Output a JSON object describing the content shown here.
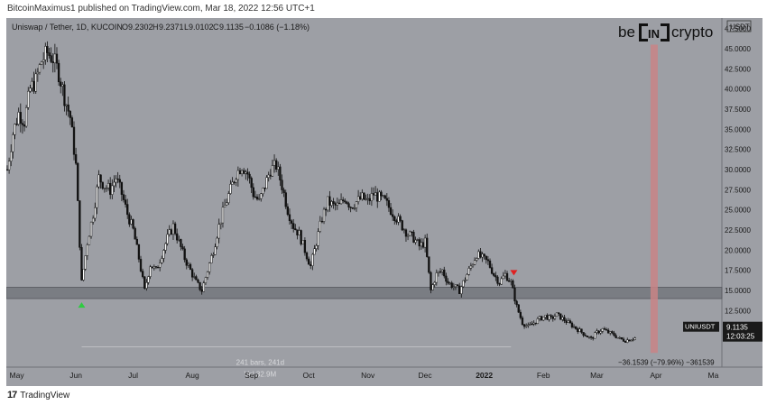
{
  "header": {
    "publish_line": "BitcoinMaximus1 published on TradingView.com, Mar 18, 2022 12:56 UTC+1"
  },
  "footer": {
    "brand": "TradingView"
  },
  "chart_data": {
    "type": "candlestick",
    "title": "Uniswap / Tether, 1D, KUCOIN",
    "ohlc": {
      "O": "9.2302",
      "H": "9.2371",
      "L": "9.0102",
      "C": "9.1135",
      "change": "−0.1086 (−1.18%)"
    },
    "currency_label": "USDT",
    "logo_text": {
      "left": "be",
      "middle": "IN",
      "right": "crypto"
    },
    "y_ticks": [
      "47.5000",
      "45.0000",
      "42.5000",
      "40.0000",
      "37.5000",
      "35.0000",
      "32.5000",
      "30.0000",
      "27.5000",
      "25.0000",
      "22.5000",
      "20.0000",
      "17.5000",
      "15.0000",
      "12.5000",
      "10.0000"
    ],
    "y_tick_values": [
      47.5,
      45,
      42.5,
      40,
      37.5,
      35,
      32.5,
      30,
      27.5,
      25,
      22.5,
      20,
      17.5,
      15,
      12.5,
      10
    ],
    "ylim": [
      5.5,
      48.8
    ],
    "x_ticks": [
      "May",
      "Jun",
      "Jul",
      "Aug",
      "Sep",
      "Oct",
      "Nov",
      "Dec",
      "2022",
      "Feb",
      "Mar",
      "Apr",
      "Ma"
    ],
    "x_tick_days": [
      5,
      36,
      66,
      97,
      128,
      158,
      189,
      219,
      250,
      281,
      309,
      340,
      370
    ],
    "xlim": [
      0,
      375
    ],
    "support_zone": [
      14.0,
      15.4
    ],
    "current_price": {
      "symbol": "UNIUSDT",
      "price": "9.1135",
      "countdown": "12:03:25",
      "value": 9.1135
    },
    "measure": {
      "bars_label": "241 bars, 241d",
      "vol_label": "Vol 32.9M",
      "change_label": "−36.1539 (−79.96%) −361539"
    },
    "path_points": [
      [
        0,
        30
      ],
      [
        3,
        34.5
      ],
      [
        6,
        37
      ],
      [
        9,
        36
      ],
      [
        12,
        40
      ],
      [
        15,
        41
      ],
      [
        18,
        43.5
      ],
      [
        21,
        44.5
      ],
      [
        24,
        43.8
      ],
      [
        27,
        42
      ],
      [
        30,
        39
      ],
      [
        33,
        36.5
      ],
      [
        36,
        30.5
      ],
      [
        39,
        16
      ],
      [
        42,
        21
      ],
      [
        45,
        24.5
      ],
      [
        48,
        29
      ],
      [
        51,
        28
      ],
      [
        54,
        27.5
      ],
      [
        57,
        29
      ],
      [
        60,
        27
      ],
      [
        63,
        24.5
      ],
      [
        66,
        22.5
      ],
      [
        69,
        19
      ],
      [
        72,
        15
      ],
      [
        75,
        18.2
      ],
      [
        78,
        17.5
      ],
      [
        81,
        19.5
      ],
      [
        84,
        21.5
      ],
      [
        87,
        23
      ],
      [
        90,
        21
      ],
      [
        93,
        19
      ],
      [
        96,
        17.5
      ],
      [
        99,
        16
      ],
      [
        102,
        15
      ],
      [
        105,
        17.5
      ],
      [
        108,
        20
      ],
      [
        111,
        23
      ],
      [
        114,
        25.5
      ],
      [
        117,
        27.5
      ],
      [
        120,
        29.5
      ],
      [
        123,
        30.5
      ],
      [
        126,
        29.5
      ],
      [
        129,
        27
      ],
      [
        132,
        26
      ],
      [
        135,
        28
      ],
      [
        138,
        30
      ],
      [
        141,
        30.5
      ],
      [
        144,
        28
      ],
      [
        147,
        25
      ],
      [
        150,
        23
      ],
      [
        153,
        22
      ],
      [
        156,
        20
      ],
      [
        159,
        18
      ],
      [
        162,
        21
      ],
      [
        165,
        24
      ],
      [
        168,
        26
      ],
      [
        171,
        25.5
      ],
      [
        174,
        25.5
      ],
      [
        177,
        26.5
      ],
      [
        180,
        25.5
      ],
      [
        183,
        26
      ],
      [
        186,
        26.5
      ],
      [
        189,
        26
      ],
      [
        192,
        27
      ],
      [
        195,
        26.5
      ],
      [
        198,
        26
      ],
      [
        201,
        25
      ],
      [
        204,
        24
      ],
      [
        207,
        23
      ],
      [
        210,
        22
      ],
      [
        213,
        21.5
      ],
      [
        216,
        20.5
      ],
      [
        219,
        21
      ],
      [
        222,
        15
      ],
      [
        225,
        17
      ],
      [
        228,
        17.5
      ],
      [
        231,
        16
      ],
      [
        234,
        15.5
      ],
      [
        237,
        15
      ],
      [
        240,
        16.5
      ],
      [
        243,
        18
      ],
      [
        246,
        19.5
      ],
      [
        249,
        19
      ],
      [
        252,
        18.5
      ],
      [
        255,
        17
      ],
      [
        258,
        16
      ],
      [
        261,
        17
      ],
      [
        264,
        16
      ],
      [
        267,
        13
      ],
      [
        270,
        11
      ],
      [
        273,
        10.5
      ],
      [
        276,
        11
      ],
      [
        279,
        11.5
      ],
      [
        282,
        11.8
      ],
      [
        285,
        11.5
      ],
      [
        288,
        12
      ],
      [
        291,
        11.5
      ],
      [
        294,
        11
      ],
      [
        297,
        10.5
      ],
      [
        300,
        10
      ],
      [
        303,
        9.5
      ],
      [
        306,
        9
      ],
      [
        309,
        9.8
      ],
      [
        312,
        10.2
      ],
      [
        315,
        9.8
      ],
      [
        318,
        9.5
      ],
      [
        321,
        9
      ],
      [
        324,
        8.8
      ],
      [
        327,
        9
      ],
      [
        329,
        9.11
      ]
    ],
    "red_bar_day": 339.5,
    "green_marker": [
      39,
      13.2
    ],
    "red_marker": [
      265.5,
      17.2
    ],
    "measure_range": [
      39,
      264
    ]
  }
}
